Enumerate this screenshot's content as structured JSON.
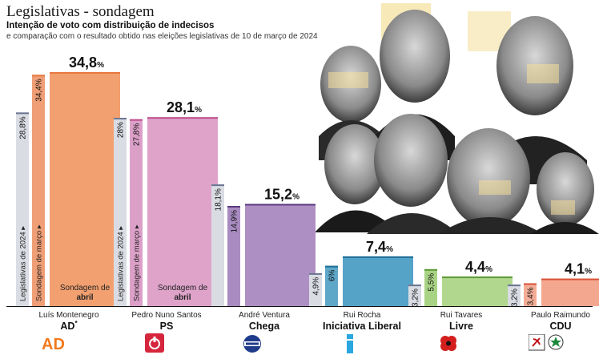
{
  "header": {
    "title": "Legislativas - sondagem",
    "subtitle": "Intenção de voto com distribuição de indecisos",
    "note": "e comparação com o resultado obtido nas eleições legislativas de 10 de março de 2024"
  },
  "chart_data": {
    "type": "bar",
    "series": [
      {
        "name": "Legislativas de 2024",
        "color": "#d9dce3"
      },
      {
        "name": "Sondagem de março",
        "color": "mixed"
      },
      {
        "name": "Sondagem de abril",
        "color": "mixed"
      }
    ],
    "groups": [
      {
        "leader": "Luís Montenegro",
        "party": "AD",
        "party_sup": "*",
        "colors": {
          "march": "#ef9e76",
          "april": "#f3a070",
          "top": "#e8773e"
        },
        "values": {
          "legislativas": 28.8,
          "march": 34.4,
          "april": 34.8
        },
        "labels": {
          "legislativas": "28,8%",
          "march": "34,4%",
          "april": "34,8"
        }
      },
      {
        "leader": "Pedro Nuno Santos",
        "party": "PS",
        "party_sup": "",
        "colors": {
          "march": "#dca0c8",
          "april": "#dfa3ca",
          "top": "#c0508f"
        },
        "values": {
          "legislativas": 28.0,
          "march": 27.8,
          "april": 28.1
        },
        "labels": {
          "legislativas": "28%",
          "march": "27,8%",
          "april": "28,1"
        }
      },
      {
        "leader": "André Ventura",
        "party": "Chega",
        "party_sup": "",
        "colors": {
          "march": "#a88bc0",
          "april": "#ae8fc3",
          "top": "#5a3a7e"
        },
        "values": {
          "legislativas": 18.1,
          "march": 14.9,
          "april": 15.2
        },
        "labels": {
          "legislativas": "18,1%",
          "march": "14,9%",
          "april": "15,2"
        }
      },
      {
        "leader": "Rui Rocha",
        "party": "Iniciativa Liberal",
        "party_sup": "",
        "colors": {
          "march": "#5fa7c8",
          "april": "#56a3c8",
          "top": "#1f6f97"
        },
        "values": {
          "legislativas": 4.9,
          "march": 6.0,
          "april": 7.4
        },
        "labels": {
          "legislativas": "4,9%",
          "march": "6%",
          "april": "7,4"
        }
      },
      {
        "leader": "Rui Tavares",
        "party": "Livre",
        "party_sup": "",
        "colors": {
          "march": "#a9d384",
          "april": "#b1d78e",
          "top": "#5e9a37"
        },
        "values": {
          "legislativas": 3.2,
          "march": 5.5,
          "april": 4.4
        },
        "labels": {
          "legislativas": "3,2%",
          "march": "5,5%",
          "april": "4,4"
        }
      },
      {
        "leader": "Paulo Raimundo",
        "party": "CDU",
        "party_sup": "",
        "colors": {
          "march": "#f2ad96",
          "april": "#f3a78e",
          "top": "#d9533a"
        },
        "values": {
          "legislativas": 3.2,
          "march": 3.4,
          "april": 4.1
        },
        "labels": {
          "legislativas": "3,2%",
          "march": "3,4%",
          "april": "4,1"
        }
      }
    ],
    "percent_sign": "%",
    "inbar_labels": {
      "legislativas": "Legislativas de 2024 ▸",
      "march": "Sondagem de março ▸",
      "april_line1": "Sondagem de",
      "april_line2": "abril"
    },
    "ylim": [
      0,
      36
    ]
  },
  "logos": [
    "ad-logo",
    "ps-logo",
    "chega-logo",
    "il-logo",
    "livre-logo",
    "cdu-logo"
  ]
}
